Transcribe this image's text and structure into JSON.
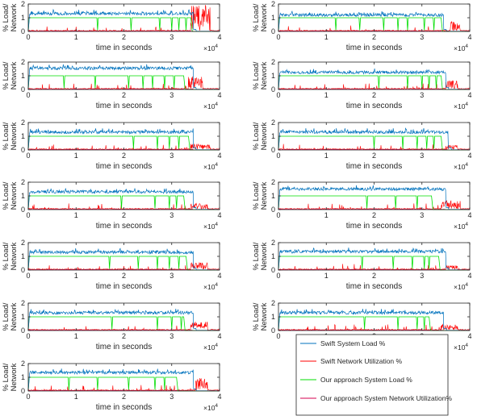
{
  "chart_data": {
    "type": "line",
    "panel_count": 13,
    "shared": {
      "xlabel": "time in seconds",
      "ylabel_line1": "% Load/",
      "ylabel_line2": "Network",
      "xlim": [
        0,
        40000
      ],
      "ylim": [
        0,
        2
      ],
      "x_ticks": [
        "0",
        "1",
        "2",
        "3",
        "4"
      ],
      "y_ticks": [
        "0",
        "1",
        "2"
      ],
      "x_exponent_base": "×10",
      "x_exponent_power": "4",
      "grid": false
    },
    "series_colors": {
      "swift_load": "#0072BD",
      "swift_net": "#FF0000",
      "our_load": "#00DD00",
      "our_net": "#D4004F"
    },
    "panels": [
      {
        "swift_level": 1.3,
        "swift_end": 34500,
        "our_end": 34000,
        "dips": [
          14500,
          21500,
          27500,
          30000,
          31500,
          33000
        ],
        "net_burst": [
          34000,
          38000
        ],
        "net_burst_height": 2.0
      },
      {
        "swift_level": 1.2,
        "swift_end": 34500,
        "our_end": 34000,
        "dips": [
          12000,
          17000,
          22000,
          25000,
          27000,
          30500,
          32500
        ],
        "net_burst": [
          36000,
          38000
        ],
        "net_burst_height": 0.7
      },
      {
        "swift_level": 1.55,
        "swift_end": 34500,
        "our_end": 32500,
        "dips": [
          7500,
          14000,
          21000,
          24000,
          26000,
          28500,
          30500
        ],
        "net_burst": [
          33500,
          36500
        ],
        "net_burst_height": 0.9
      },
      {
        "swift_level": 1.25,
        "swift_end": 35000,
        "our_end": 34000,
        "dips": [
          21000,
          27000,
          30000,
          31500,
          33000
        ],
        "net_burst": [
          35000,
          37500
        ],
        "net_burst_height": 0.6
      },
      {
        "swift_level": 1.3,
        "swift_end": 34500,
        "our_end": 33500,
        "dips": [
          22000,
          27000,
          29500,
          31500
        ],
        "net_burst": [
          34000,
          38000
        ],
        "net_burst_height": 0.4
      },
      {
        "swift_level": 1.3,
        "swift_end": 35500,
        "our_end": 34000,
        "dips": [
          20000,
          26000,
          29000,
          31000,
          32500
        ],
        "net_burst": [
          35000,
          37500
        ],
        "net_burst_height": 0.3
      },
      {
        "swift_level": 1.3,
        "swift_end": 34500,
        "our_end": 32500,
        "dips": [
          19500,
          26500,
          29500,
          31000
        ],
        "net_burst": [
          34000,
          37500
        ],
        "net_burst_height": 0.4
      },
      {
        "swift_level": 1.5,
        "swift_end": 35000,
        "our_end": 32000,
        "dips": [
          18500,
          24500,
          29000
        ],
        "net_burst": [
          34000,
          38000
        ],
        "net_burst_height": 0.6
      },
      {
        "swift_level": 1.3,
        "swift_end": 34500,
        "our_end": 33000,
        "dips": [
          17000,
          23000,
          27000,
          29500,
          31500
        ],
        "net_burst": [
          34000,
          37500
        ],
        "net_burst_height": 0.5
      },
      {
        "swift_level": 1.35,
        "swift_end": 35000,
        "our_end": 33500,
        "dips": [
          17500,
          24000,
          28000,
          30500,
          31500
        ],
        "net_burst": [
          35000,
          37500
        ],
        "net_burst_height": 0.3
      },
      {
        "swift_level": 1.3,
        "swift_end": 34500,
        "our_end": 32500,
        "dips": [
          17500,
          27000,
          30000,
          32000
        ],
        "net_burst": [
          34000,
          37500
        ],
        "net_burst_height": 0.6
      },
      {
        "swift_level": 1.3,
        "swift_end": 34500,
        "our_end": 31500,
        "dips": [
          18000,
          25000,
          29000,
          30500
        ],
        "net_burst": [
          34000,
          37500
        ],
        "net_burst_height": 0.4
      },
      {
        "swift_level": 1.35,
        "swift_end": 34500,
        "our_end": 31000,
        "dips": [
          8500,
          14500,
          21000,
          26500,
          28500
        ],
        "net_burst": [
          35000,
          37500
        ],
        "net_burst_height": 0.9
      }
    ],
    "legend": {
      "placement": "bottom-right",
      "entries": [
        {
          "label": "Swift System Load %",
          "color": "#0072BD"
        },
        {
          "label": "Swift Network Utilization %",
          "color": "#FF0000"
        },
        {
          "label": "Our approach System Load %",
          "color": "#00DD00"
        },
        {
          "label": "Our approach System Network Utilization%",
          "color": "#D4004F"
        }
      ]
    }
  }
}
